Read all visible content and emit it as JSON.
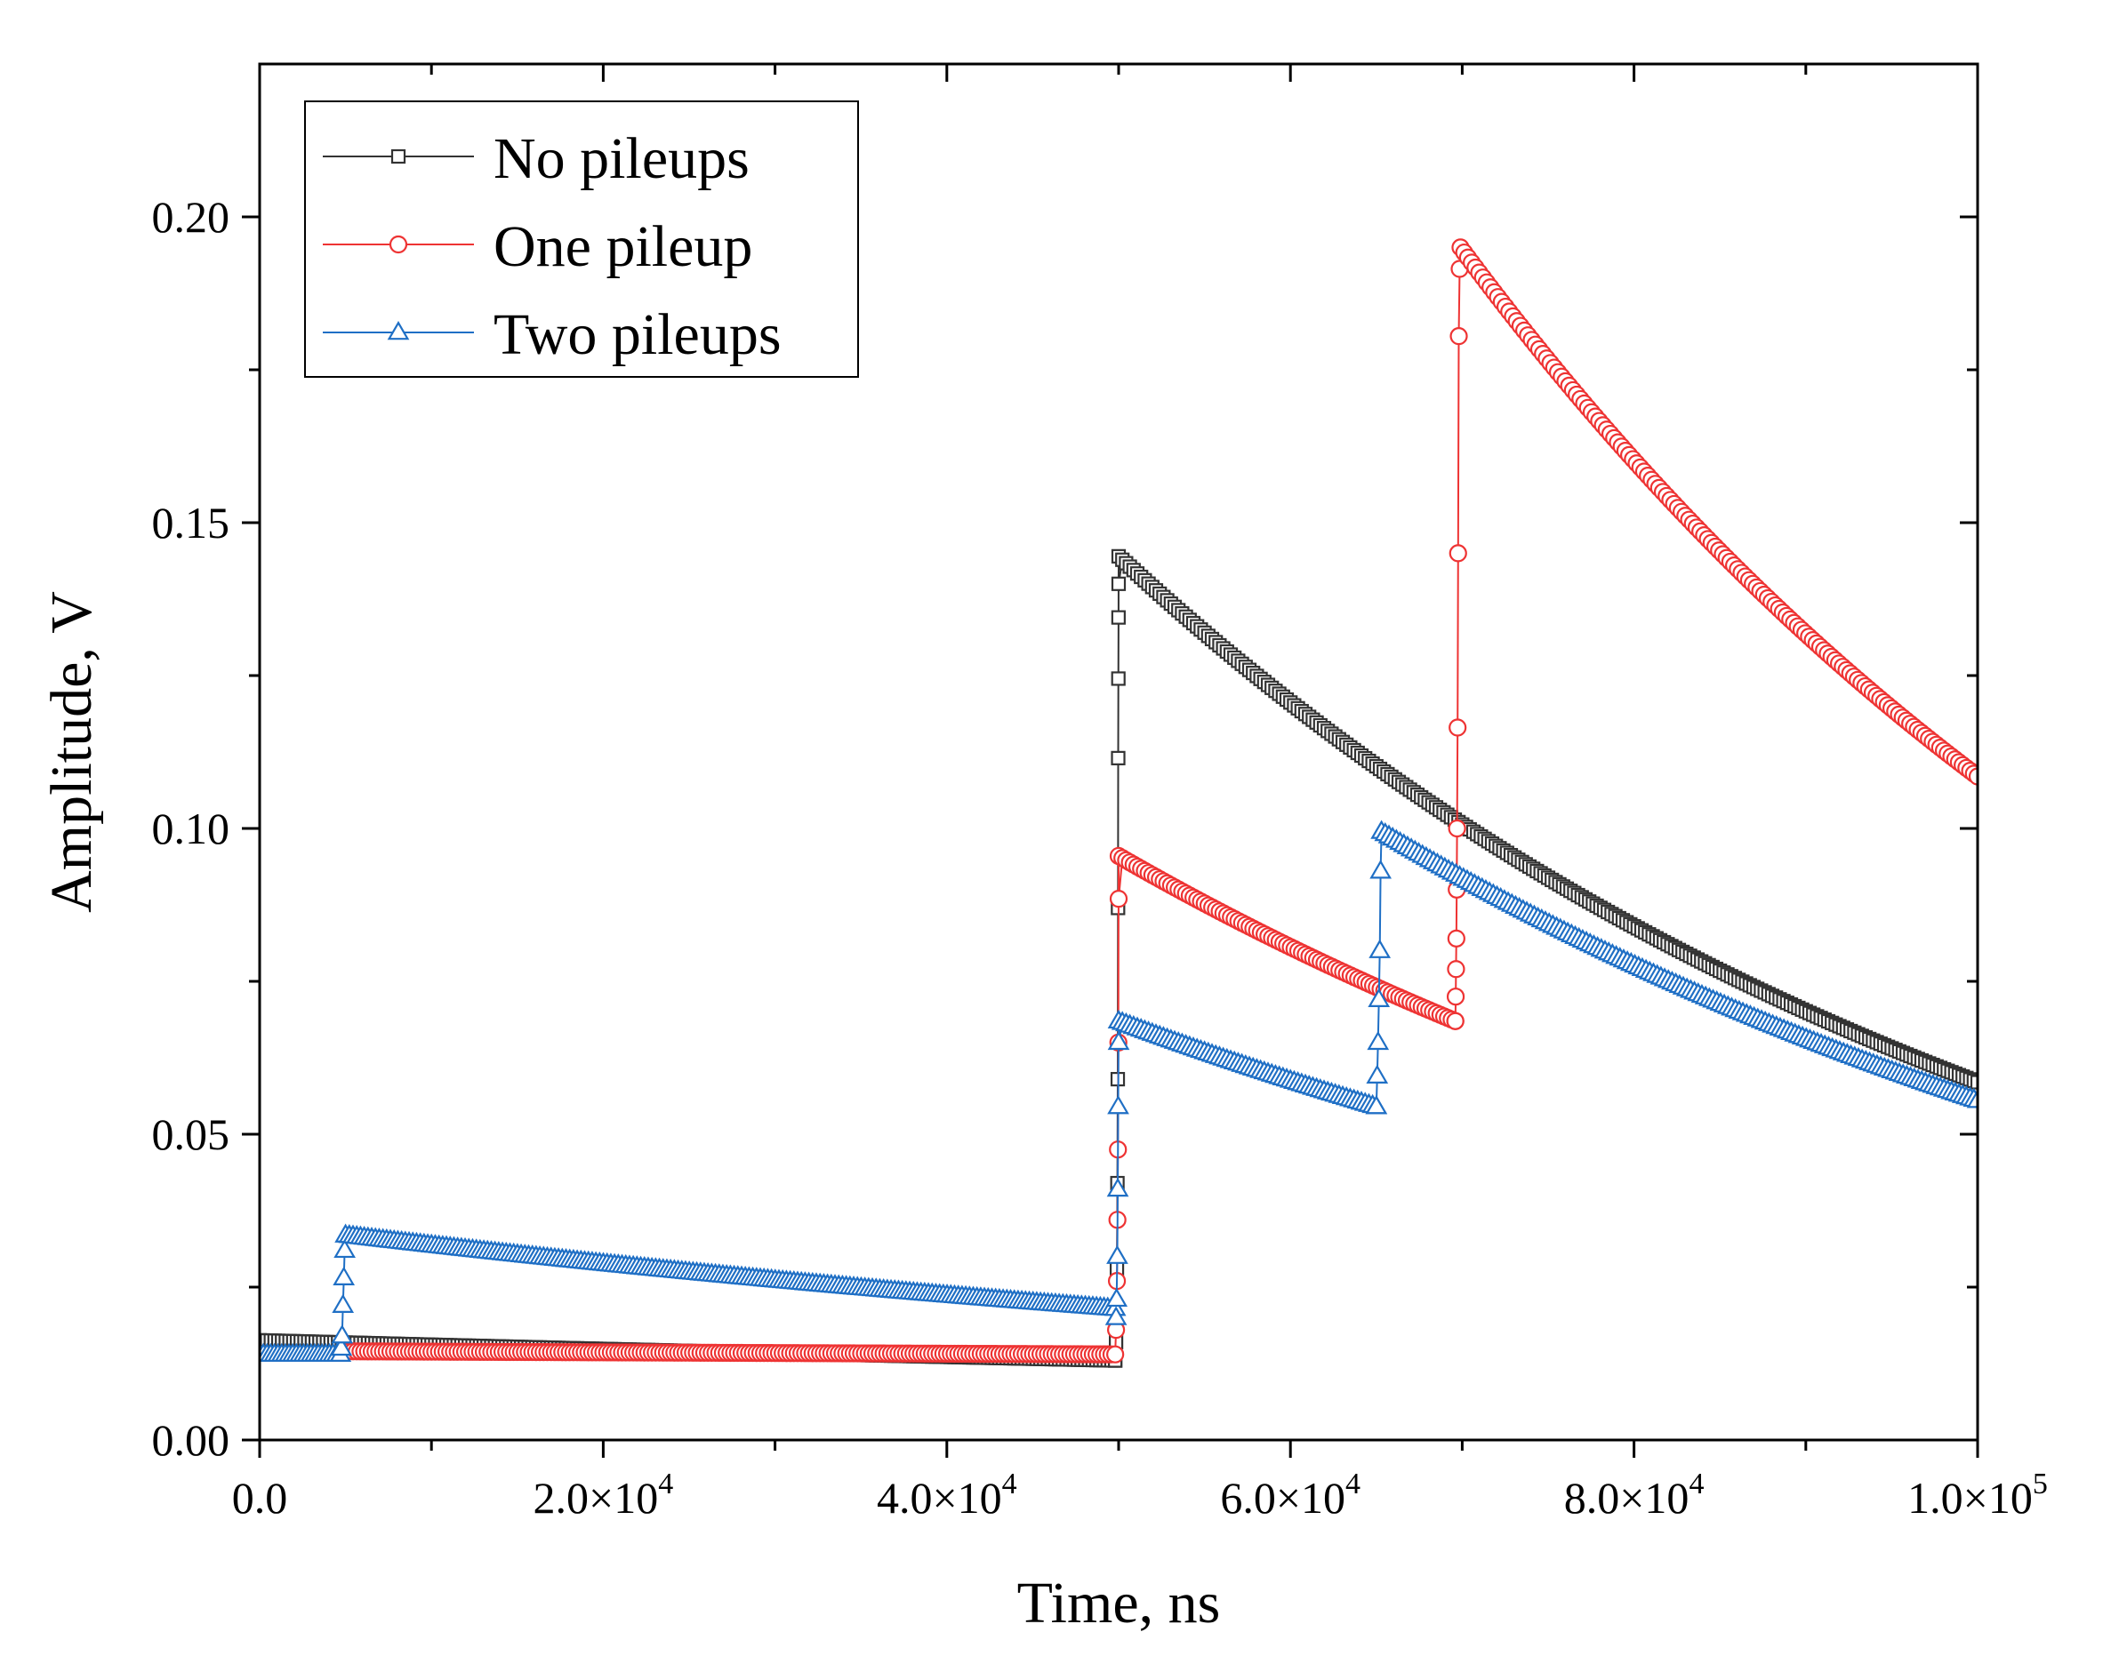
{
  "chart_data": {
    "type": "line",
    "title": "",
    "xlabel": "Time, ns",
    "ylabel": "Amplitude, V",
    "xlim": [
      0,
      100000
    ],
    "ylim": [
      0,
      0.225
    ],
    "x_ticks": [
      0,
      20000,
      40000,
      60000,
      80000,
      100000
    ],
    "x_tick_labels": [
      {
        "mantissa": "0.0",
        "exp": ""
      },
      {
        "mantissa": "2.0×10",
        "exp": "4"
      },
      {
        "mantissa": "4.0×10",
        "exp": "4"
      },
      {
        "mantissa": "6.0×10",
        "exp": "4"
      },
      {
        "mantissa": "8.0×10",
        "exp": "4"
      },
      {
        "mantissa": "1.0×10",
        "exp": "5"
      }
    ],
    "x_minor_ticks": [
      10000,
      30000,
      50000,
      70000,
      90000
    ],
    "y_ticks": [
      0,
      0.05,
      0.1,
      0.15,
      0.2
    ],
    "y_tick_labels": [
      "0.00",
      "0.05",
      "0.10",
      "0.15",
      "0.20"
    ],
    "y_minor_ticks": [
      0.025,
      0.075,
      0.125,
      0.175
    ],
    "grid": false,
    "legend_position": "top-left",
    "series": [
      {
        "name": "No pileups",
        "color": "#333333",
        "marker": "square",
        "segments": [
          {
            "x0": 0,
            "x1": 49800,
            "a0": 0.0163,
            "a1": 0.013
          },
          {
            "x0": 50000,
            "x1": 100000,
            "a0": 0.1445,
            "a1": 0.0585
          }
        ],
        "rise_points": [
          [
            49800,
            0.013
          ],
          [
            49850,
            0.016
          ],
          [
            49900,
            0.028
          ],
          [
            49930,
            0.042
          ],
          [
            49950,
            0.059
          ],
          [
            49965,
            0.087
          ],
          [
            49975,
            0.1115
          ],
          [
            49985,
            0.1245
          ],
          [
            49993,
            0.1345
          ],
          [
            50000,
            0.14
          ]
        ]
      },
      {
        "name": "One pileup",
        "color": "#ee3333",
        "marker": "circle",
        "segments": [
          {
            "x0": 5000,
            "x1": 49800,
            "a0": 0.0145,
            "a1": 0.014
          },
          {
            "x0": 50000,
            "x1": 69600,
            "a0": 0.0955,
            "a1": 0.0685
          },
          {
            "x0": 69900,
            "x1": 100000,
            "a0": 0.195,
            "a1": 0.1085
          }
        ],
        "rise_points": [
          [
            49850,
            0.018
          ],
          [
            49900,
            0.026
          ],
          [
            49930,
            0.036
          ],
          [
            49960,
            0.0475
          ],
          [
            49985,
            0.065
          ],
          [
            50000,
            0.0885
          ],
          [
            69600,
            0.0685
          ],
          [
            69620,
            0.0725
          ],
          [
            69640,
            0.077
          ],
          [
            69660,
            0.082
          ],
          [
            69680,
            0.09
          ],
          [
            69700,
            0.1
          ],
          [
            69730,
            0.1165
          ],
          [
            69760,
            0.145
          ],
          [
            69800,
            0.1805
          ],
          [
            69850,
            0.1915
          ]
        ]
      },
      {
        "name": "Two pileups",
        "color": "#1f6fc5",
        "marker": "triangle",
        "segments": [
          {
            "x0": 0,
            "x1": 4700,
            "a0": 0.014,
            "a1": 0.014
          },
          {
            "x0": 5000,
            "x1": 49800,
            "a0": 0.0335,
            "a1": 0.0215
          },
          {
            "x0": 50000,
            "x1": 65000,
            "a0": 0.0685,
            "a1": 0.0545
          },
          {
            "x0": 65300,
            "x1": 100000,
            "a0": 0.0995,
            "a1": 0.0555
          }
        ],
        "rise_points": [
          [
            4750,
            0.015
          ],
          [
            4800,
            0.017
          ],
          [
            4850,
            0.022
          ],
          [
            4900,
            0.0265
          ],
          [
            4950,
            0.031
          ],
          [
            49850,
            0.02
          ],
          [
            49880,
            0.023
          ],
          [
            49920,
            0.03
          ],
          [
            49950,
            0.041
          ],
          [
            49975,
            0.0545
          ],
          [
            50000,
            0.065
          ],
          [
            65000,
            0.0545
          ],
          [
            65050,
            0.0595
          ],
          [
            65100,
            0.065
          ],
          [
            65150,
            0.072
          ],
          [
            65200,
            0.08
          ],
          [
            65250,
            0.093
          ]
        ]
      }
    ]
  }
}
